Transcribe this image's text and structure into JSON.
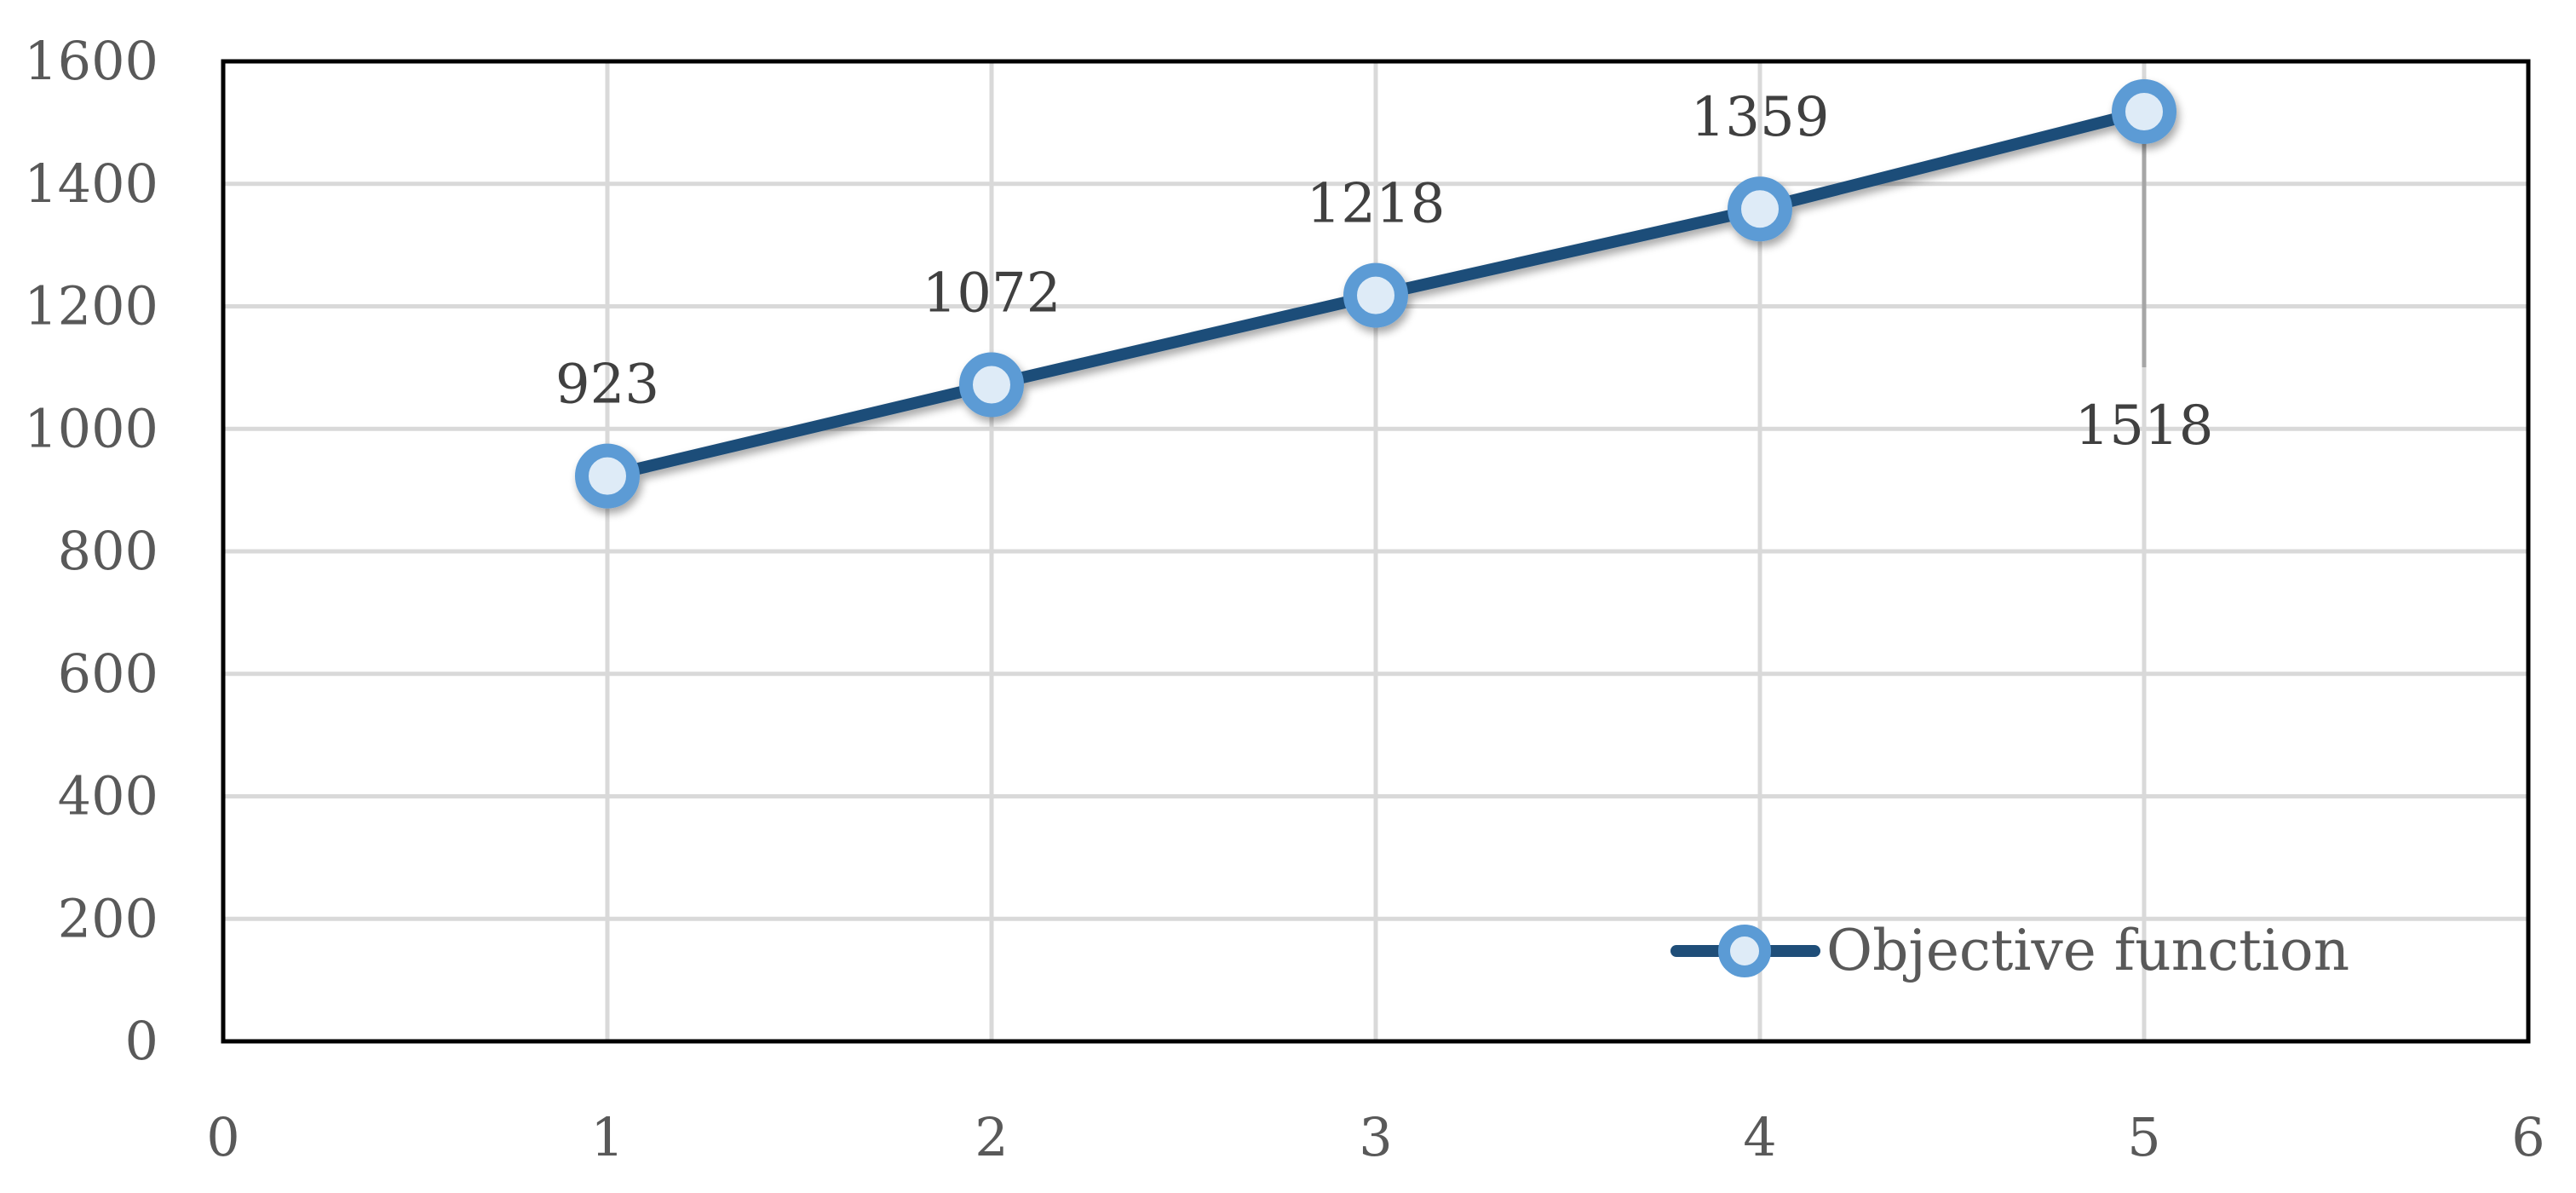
{
  "chart_data": {
    "type": "scatter",
    "title": "",
    "xlabel": "",
    "ylabel": "",
    "xlim": [
      0,
      6
    ],
    "ylim": [
      0,
      1600
    ],
    "x_ticks": [
      0,
      1,
      2,
      3,
      4,
      5,
      6
    ],
    "y_ticks": [
      0,
      200,
      400,
      600,
      800,
      1000,
      1200,
      1400,
      1600
    ],
    "grid": true,
    "legend_position": "bottom-right",
    "series": [
      {
        "name": "Objective function",
        "line_color": "#1f4e79",
        "marker_color": "#5b9bd5",
        "marker_fill": "#deebf7",
        "points": [
          {
            "x": 1,
            "y": 923,
            "label": "923"
          },
          {
            "x": 2,
            "y": 1072,
            "label": "1072"
          },
          {
            "x": 3,
            "y": 1218,
            "label": "1218"
          },
          {
            "x": 4,
            "y": 1359,
            "label": "1359"
          },
          {
            "x": 5,
            "y": 1518,
            "label": "1518"
          }
        ]
      }
    ]
  }
}
